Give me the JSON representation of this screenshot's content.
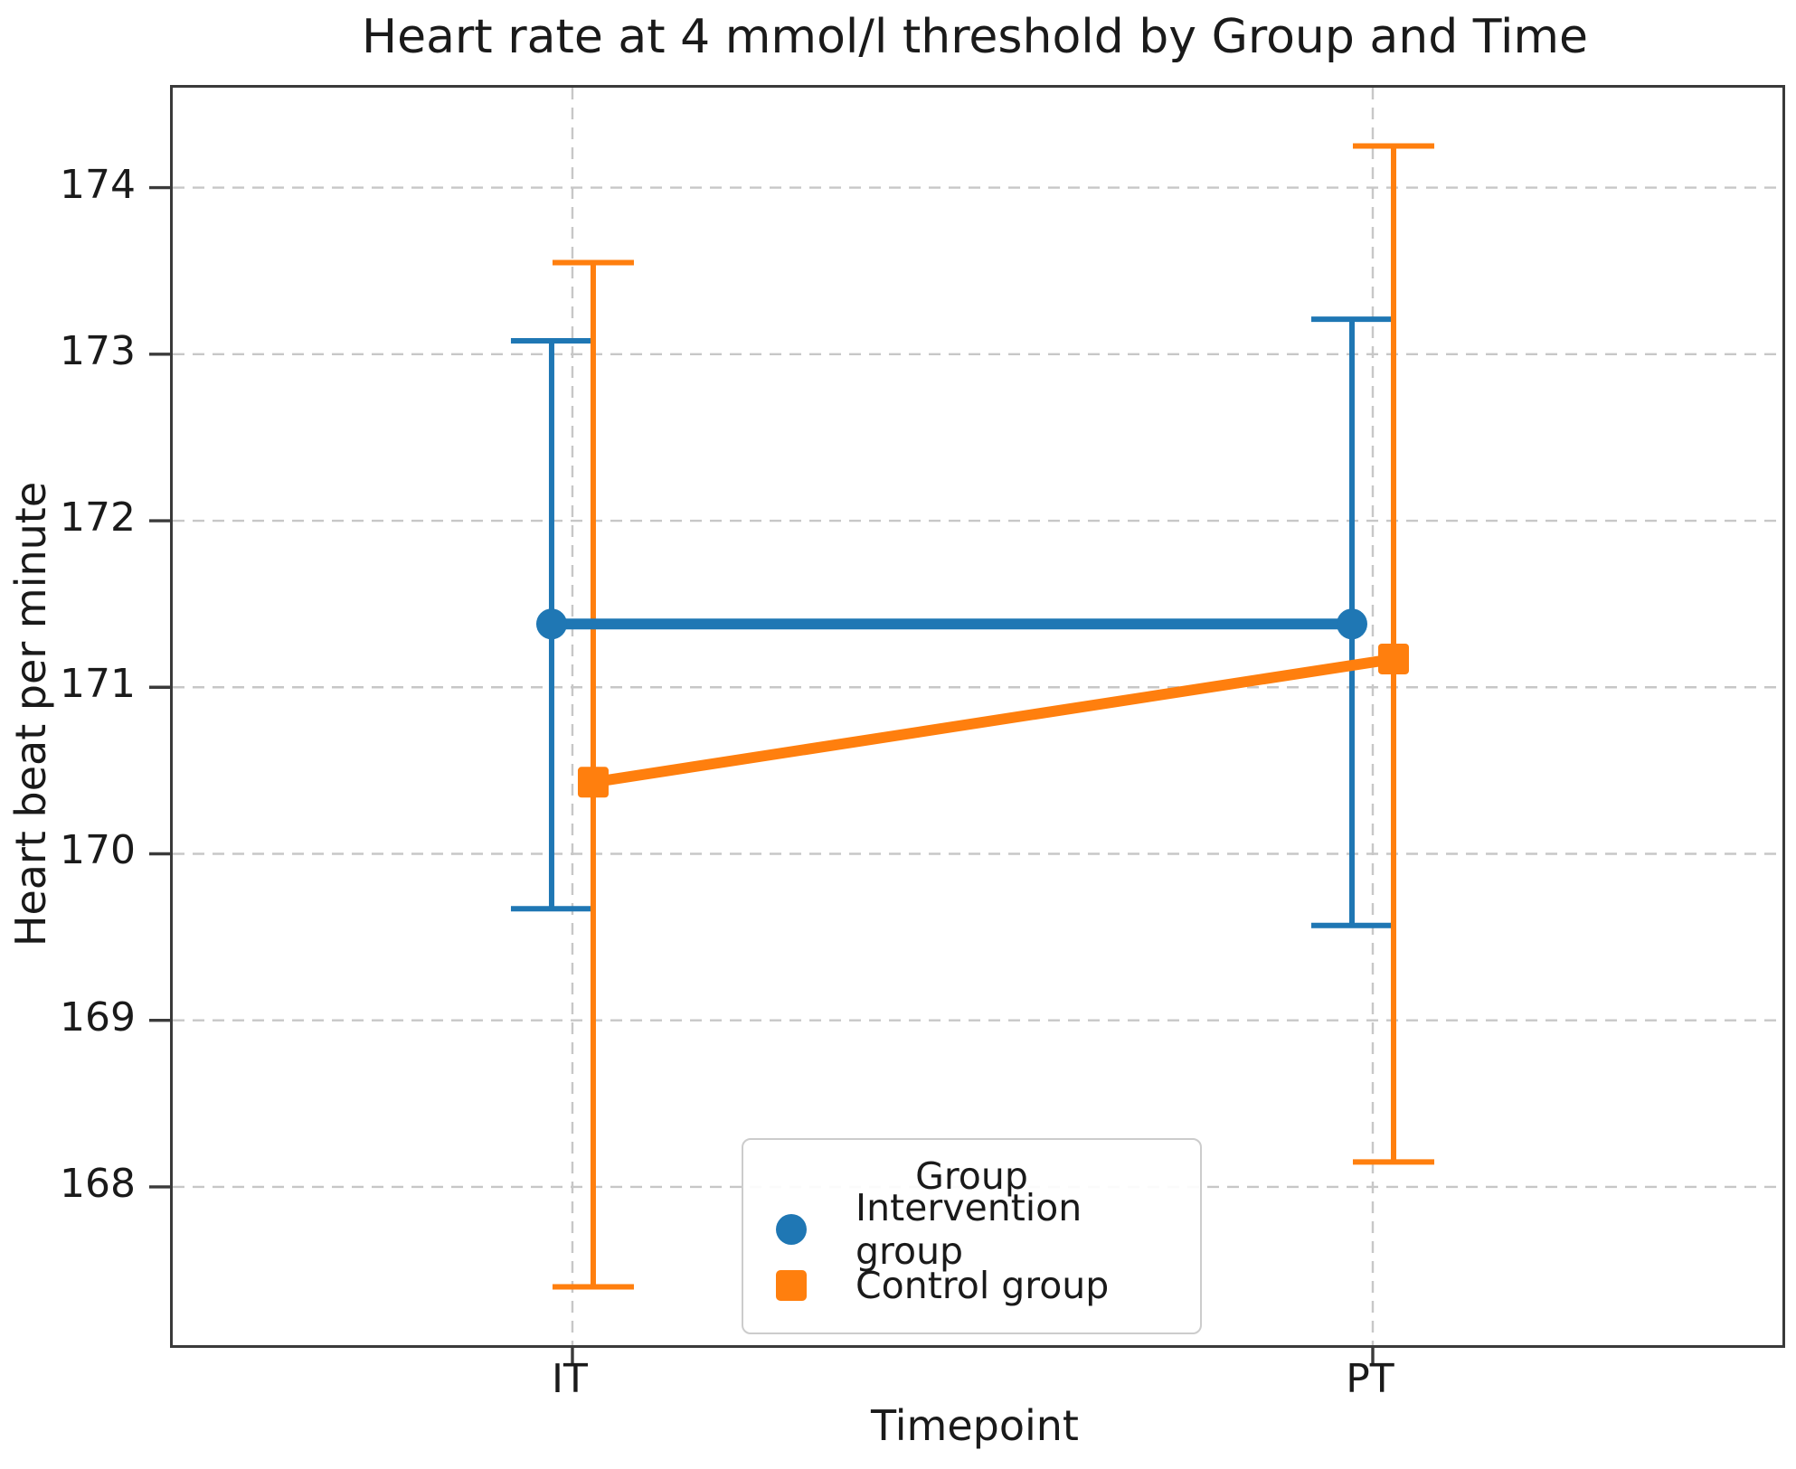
{
  "title": "Heart rate at 4 mmol/l threshold by Group and Time",
  "axes": {
    "x_label": "Timepoint",
    "y_label": "Heart beat per minute"
  },
  "legend": {
    "title": "Group",
    "entries": [
      {
        "label": "Intervention group",
        "marker": "circle",
        "color": "#1f77b4"
      },
      {
        "label": "Control group",
        "marker": "square",
        "color": "#ff7f0e"
      }
    ]
  },
  "chart_data": {
    "type": "line",
    "title": "Heart rate at 4 mmol/l threshold by Group and Time",
    "xlabel": "Timepoint",
    "ylabel": "Heart beat per minute",
    "x_categories": [
      "IT",
      "PT"
    ],
    "series": [
      {
        "name": "Intervention group",
        "marker": "circle",
        "color": "#1f77b4",
        "values": [
          171.38,
          171.38
        ],
        "ci_low": [
          169.67,
          169.57
        ],
        "ci_high": [
          173.08,
          173.21
        ]
      },
      {
        "name": "Control group",
        "marker": "square",
        "color": "#ff7f0e",
        "values": [
          170.43,
          171.17
        ],
        "ci_low": [
          167.4,
          168.15
        ],
        "ci_high": [
          173.55,
          174.25
        ]
      }
    ],
    "yticks": [
      168,
      169,
      170,
      171,
      172,
      173,
      174
    ],
    "ylim": [
      167.05,
      174.6
    ],
    "grid": true,
    "grid_style": "dashed",
    "error_bars": "confidence interval with caps",
    "legend_position": "lower center"
  }
}
